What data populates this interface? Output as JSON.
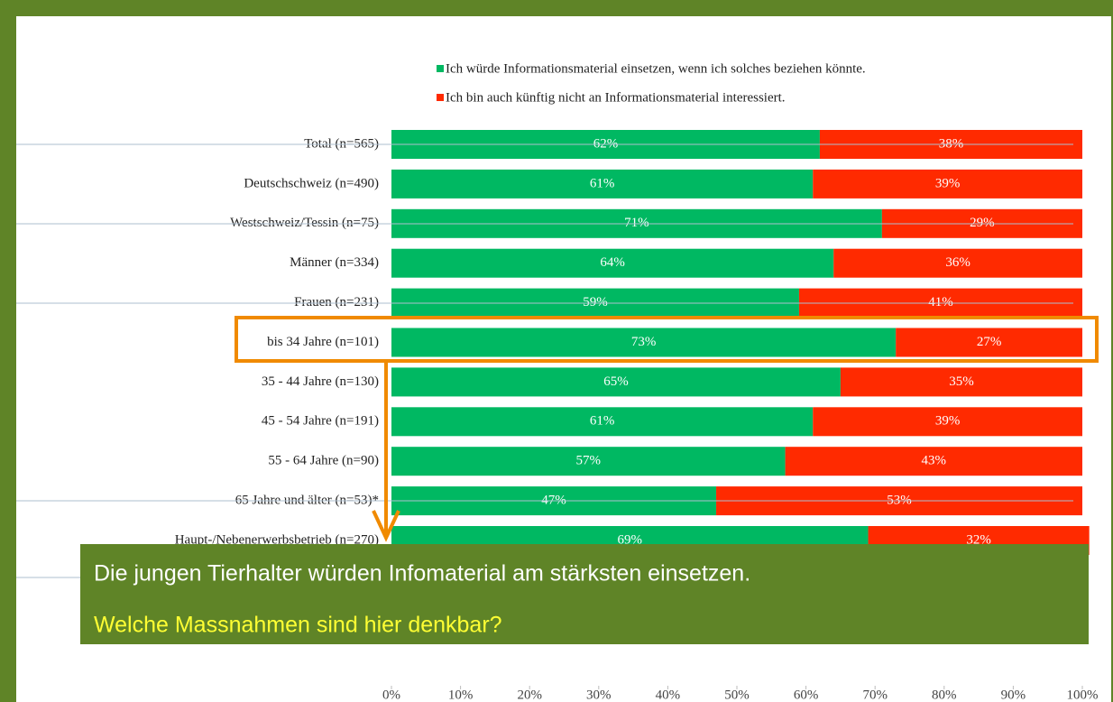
{
  "chart_data": {
    "type": "stacked_barh",
    "categories": [
      "Total (n=565)",
      "Deutschschweiz (n=490)",
      "Westschweiz/Tessin (n=75)",
      "Männer (n=334)",
      "Frauen (n=231)",
      "bis 34 Jahre (n=101)",
      "35 - 44 Jahre (n=130)",
      "45 - 54 Jahre (n=191)",
      "55 - 64 Jahre (n=90)",
      "65 Jahre und älter (n=53)*",
      "Haupt-/Nebenerwerbsbetrieb (n=270)"
    ],
    "series": [
      {
        "name": "Ich würde Informationsmaterial einsetzen, wenn ich solches beziehen könnte.",
        "color": "#00b862",
        "values": [
          62,
          61,
          71,
          64,
          59,
          73,
          65,
          61,
          57,
          47,
          69
        ],
        "value_labels": [
          "62%",
          "61%",
          "71%",
          "64%",
          "59%",
          "73%",
          "65%",
          "61%",
          "57%",
          "47%",
          "69%"
        ]
      },
      {
        "name": "Ich bin auch künftig nicht an Informationsmaterial interessiert.",
        "color": "#ff2a00",
        "values": [
          38,
          39,
          29,
          36,
          41,
          27,
          35,
          39,
          43,
          53,
          32
        ],
        "value_labels": [
          "38%",
          "39%",
          "29%",
          "36%",
          "41%",
          "27%",
          "35%",
          "39%",
          "43%",
          "53%",
          "32%"
        ]
      }
    ],
    "xlim": [
      0,
      100
    ],
    "xticks": [
      {
        "value": 0,
        "label": "0%"
      },
      {
        "value": 10,
        "label": "10%"
      },
      {
        "value": 20,
        "label": "20%"
      },
      {
        "value": 30,
        "label": "30%"
      },
      {
        "value": 40,
        "label": "40%"
      },
      {
        "value": 50,
        "label": "50%"
      },
      {
        "value": 60,
        "label": "60%"
      },
      {
        "value": 70,
        "label": "70%"
      },
      {
        "value": 80,
        "label": "80%"
      },
      {
        "value": 90,
        "label": "90%"
      },
      {
        "value": 100,
        "label": "100%"
      }
    ],
    "legend": "top"
  },
  "callout": {
    "text": "Die jungen Tierhalter würden Infomaterial am stärksten einsetzen.",
    "question": "Welche Massnahmen sind hier denkbar?"
  }
}
